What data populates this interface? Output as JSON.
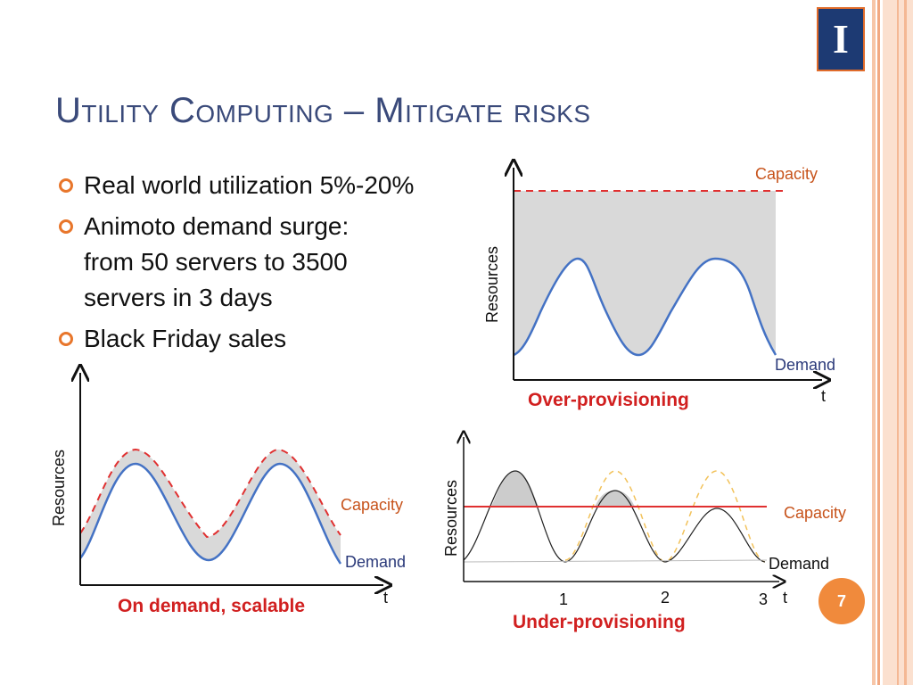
{
  "slide": {
    "title": "Utility Computing – Mitigate risks",
    "page_number": "7",
    "logo_letter": "I"
  },
  "bullets": [
    {
      "lines": [
        "Real world utilization 5%-20%"
      ]
    },
    {
      "lines": [
        "Animoto demand surge:",
        "from 50 servers to 3500",
        "servers in 3 days"
      ]
    },
    {
      "lines": [
        "Black Friday sales"
      ]
    }
  ],
  "charts": {
    "over": {
      "capacity_label": "Capacity",
      "demand_label": "Demand",
      "y_label": "Resources",
      "x_label": "t",
      "caption": "Over-provisioning"
    },
    "ondemand": {
      "capacity_label": "Capacity",
      "demand_label": "Demand",
      "y_label": "Resources",
      "x_label": "t",
      "caption": "On demand, scalable"
    },
    "under": {
      "capacity_label": "Capacity",
      "demand_label": "Demand",
      "y_label": "Resources",
      "x_label": "t",
      "ticks": [
        "1",
        "2",
        "3"
      ],
      "caption": "Under-provisioning"
    }
  },
  "colors": {
    "title": "#3a4a7a",
    "accent": "#e8762b",
    "demand": "#4472c4",
    "capacity_red": "#e03030",
    "caption_red": "#d12020",
    "fill_gray": "#d9d9d9"
  }
}
